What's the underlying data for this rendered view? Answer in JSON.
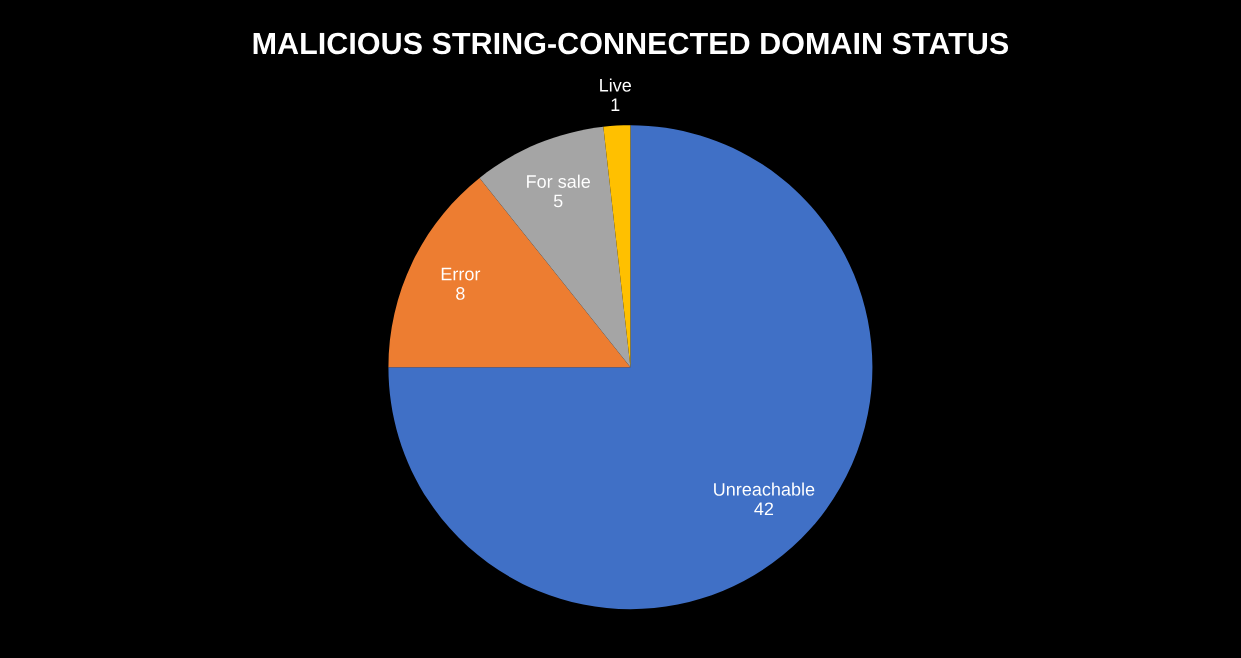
{
  "chart_data": {
    "type": "pie",
    "title": "MALICIOUS STRING-CONNECTED DOMAIN STATUS",
    "categories": [
      "Unreachable",
      "Error",
      "For sale",
      "Live"
    ],
    "values": [
      42,
      8,
      5,
      1
    ],
    "colors": [
      "#4070c6",
      "#ed7d31",
      "#a5a5a5",
      "#ffc000"
    ],
    "data_labels": true,
    "legend": false
  }
}
